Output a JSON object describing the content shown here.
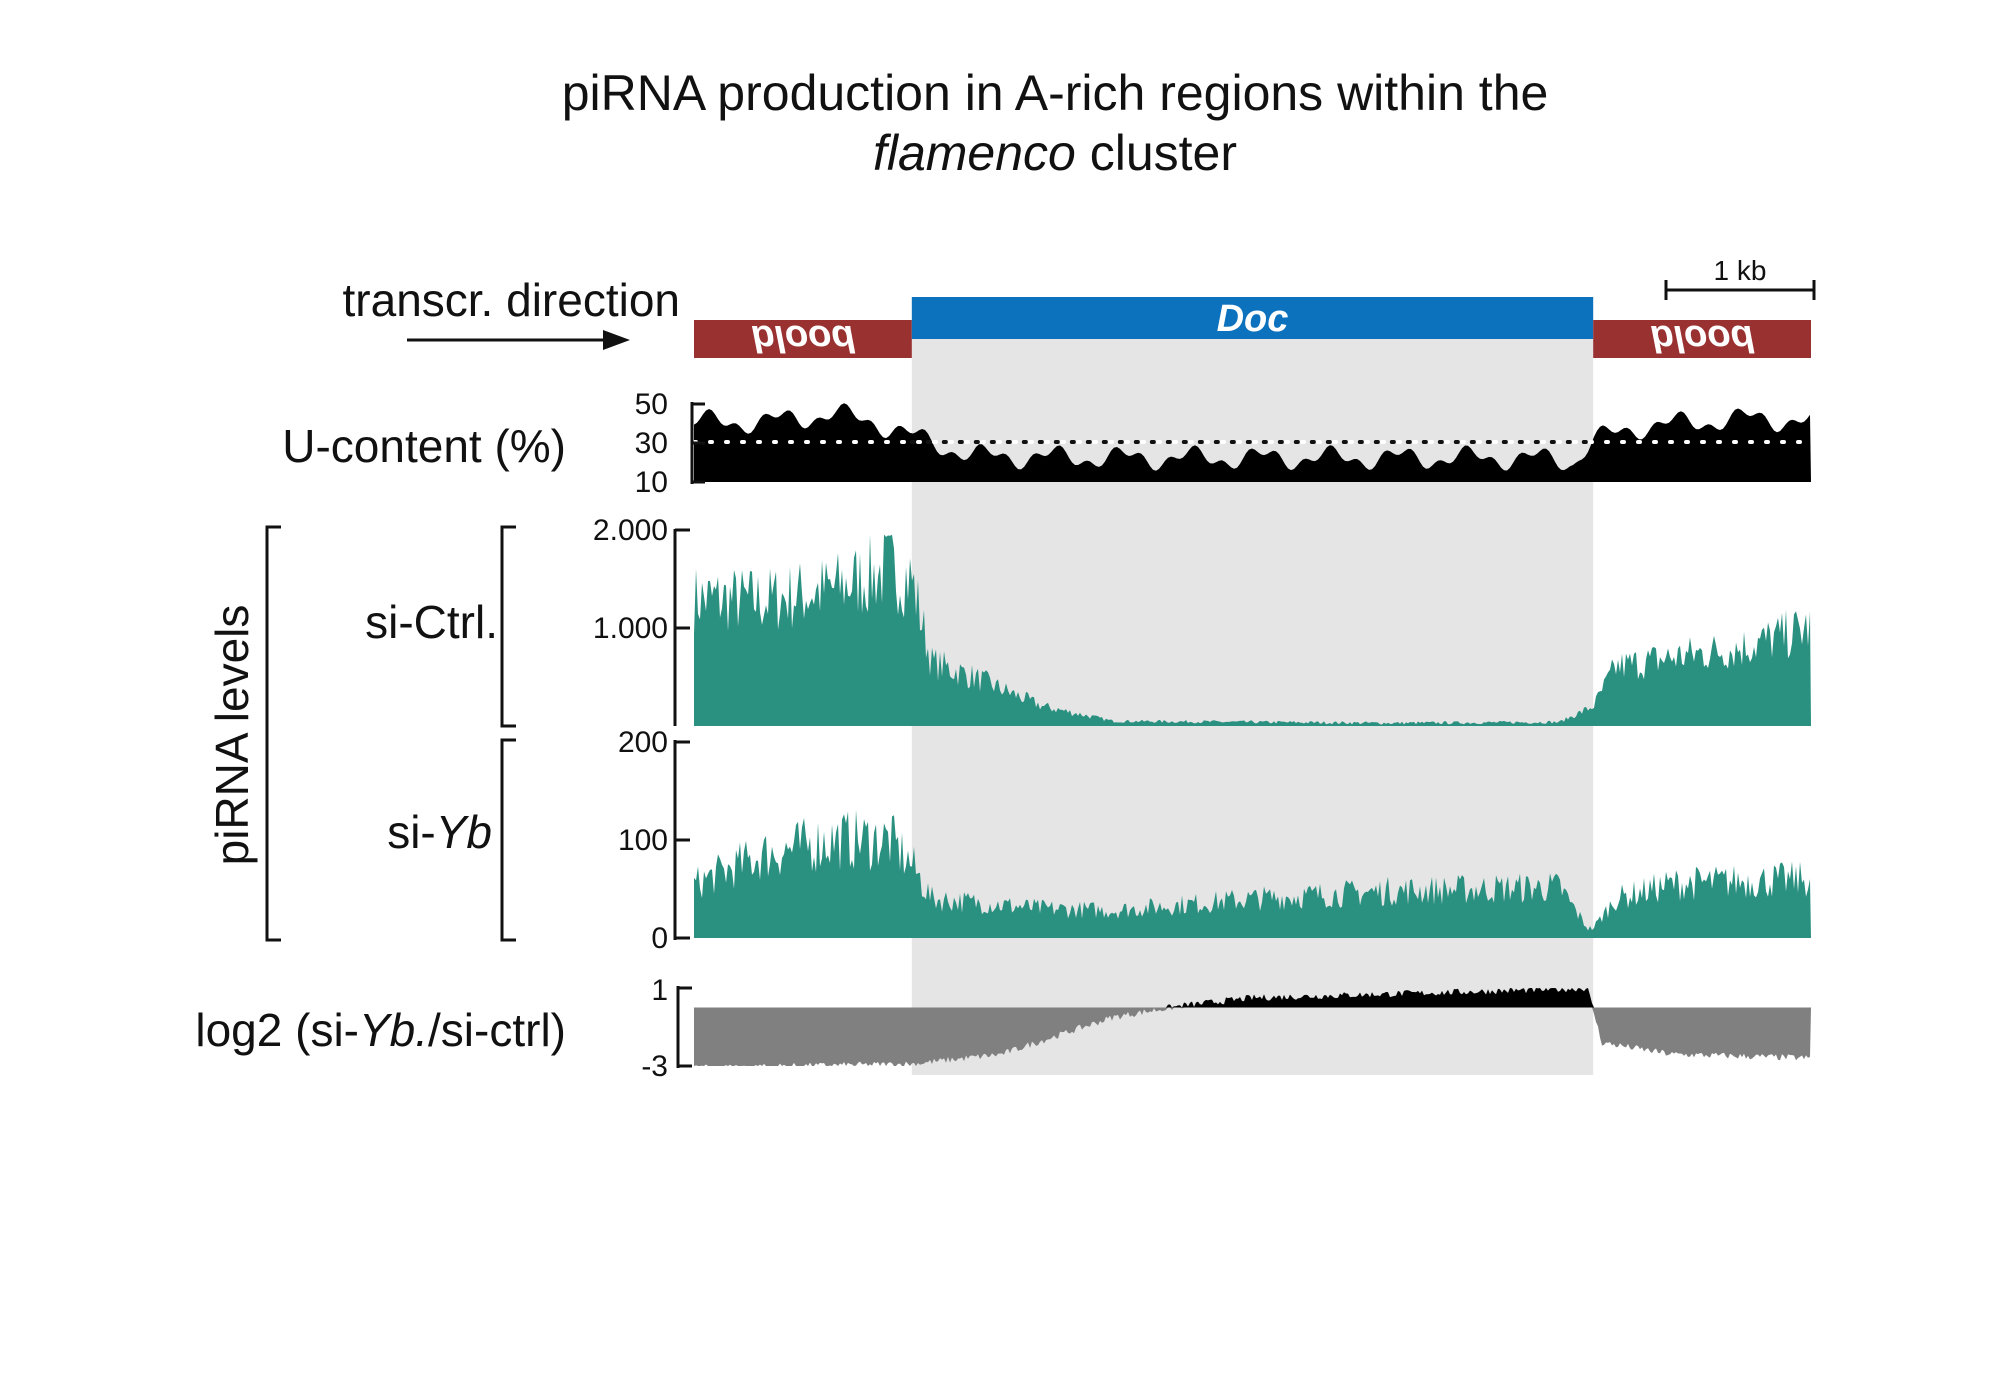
{
  "title": {
    "line1": "piRNA production in A-rich regions within the",
    "line2_italic": "flamenco",
    "line2_rest": " cluster"
  },
  "annotation": {
    "direction_label": "transcr. direction",
    "scale_bar_label": "1 kb",
    "features": [
      {
        "name": "blood",
        "start_kb": 0.0,
        "end_kb": 1.56,
        "color": "#9a3131",
        "mirrored": true
      },
      {
        "name": "Doc",
        "start_kb": 1.56,
        "end_kb": 6.44,
        "color": "#0d72bd",
        "mirrored": false
      },
      {
        "name": "blood",
        "start_kb": 6.44,
        "end_kb": 8.0,
        "color": "#9a3131",
        "mirrored": true
      }
    ],
    "highlight_color": "#e5e5e5"
  },
  "tracks": {
    "u_content": {
      "label": "U-content (%)",
      "ticks": [
        "50",
        "30",
        "10"
      ],
      "reference": 30
    },
    "pirna_group_label": "piRNA levels",
    "si_ctrl": {
      "label": "si-Ctrl.",
      "ticks": [
        "2.000",
        "1.000"
      ]
    },
    "si_yb": {
      "label_prefix": "si-",
      "label_italic": "Yb",
      "ticks": [
        "200",
        "100",
        "0"
      ]
    },
    "log2": {
      "label_prefix": "log2  (si-",
      "label_italic": "Yb.",
      "label_suffix": "/si-ctrl)",
      "ticks": [
        "1",
        "-3"
      ]
    }
  },
  "chart_data": [
    {
      "type": "area",
      "name": "U-content (%)",
      "x_unit": "kb",
      "xlim": [
        0,
        8
      ],
      "ylim": [
        10,
        50
      ],
      "color": "#000000",
      "x": [
        0,
        0.5,
        1,
        1.3,
        1.56,
        2,
        3,
        4,
        5,
        6,
        6.3,
        6.44,
        6.8,
        7.2,
        7.6,
        8
      ],
      "values": [
        40,
        40,
        44,
        40,
        33,
        23,
        22,
        22,
        22,
        22,
        20,
        31,
        38,
        40,
        42,
        40
      ]
    },
    {
      "type": "area",
      "name": "si-Ctrl.",
      "x_unit": "kb",
      "xlim": [
        0,
        8
      ],
      "ylim": [
        0,
        2000
      ],
      "color": "#2a9080",
      "x": [
        0,
        0.5,
        1,
        1.4,
        1.56,
        1.7,
        2.0,
        2.5,
        3.0,
        4,
        5,
        6.2,
        6.44,
        6.6,
        7.0,
        7.5,
        8
      ],
      "values": [
        1300,
        1280,
        1400,
        1600,
        1500,
        650,
        500,
        200,
        50,
        40,
        30,
        40,
        200,
        600,
        700,
        800,
        1000
      ]
    },
    {
      "type": "area",
      "name": "si-Yb",
      "x_unit": "kb",
      "xlim": [
        0,
        8
      ],
      "ylim": [
        0,
        200
      ],
      "color": "#2a9080",
      "x": [
        0,
        0.5,
        1,
        1.4,
        1.56,
        1.7,
        2.5,
        3.0,
        4,
        5,
        6.2,
        6.4,
        6.44,
        6.6,
        7.0,
        7.5,
        8
      ],
      "values": [
        55,
        85,
        100,
        100,
        75,
        40,
        30,
        28,
        40,
        48,
        52,
        10,
        10,
        40,
        55,
        58,
        60
      ]
    },
    {
      "type": "area",
      "name": "log2 (si-Yb./si-ctrl)",
      "x_unit": "kb",
      "xlim": [
        0,
        8
      ],
      "ylim": [
        -3,
        1
      ],
      "baseline": 0,
      "colors": {
        "negative": "#808080",
        "positive": "#000000"
      },
      "x": [
        0,
        1.56,
        2.2,
        3.0,
        3.5,
        4.0,
        5.0,
        6.0,
        6.4,
        6.5,
        7.0,
        8
      ],
      "values": [
        -3.1,
        -2.9,
        -2.4,
        -0.5,
        0.1,
        0.5,
        0.7,
        0.9,
        1.0,
        -1.8,
        -2.4,
        -2.6
      ]
    }
  ]
}
